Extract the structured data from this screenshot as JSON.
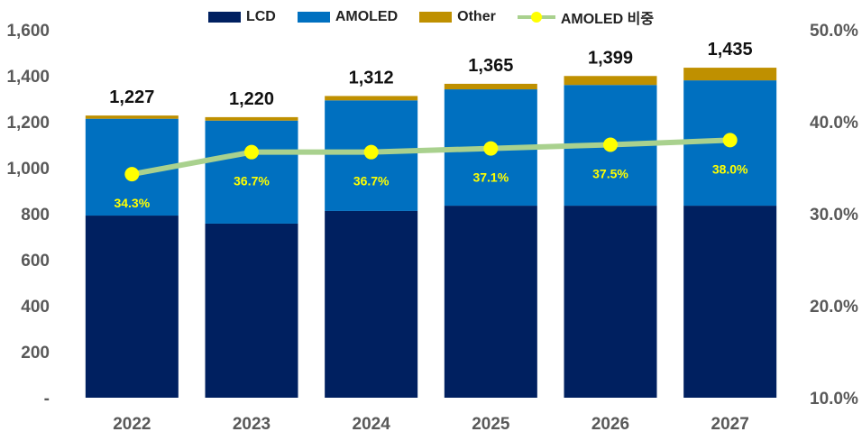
{
  "chart_data": {
    "type": "bar",
    "stacked": true,
    "categories": [
      "2022",
      "2023",
      "2024",
      "2025",
      "2026",
      "2027"
    ],
    "series": [
      {
        "name": "LCD",
        "values": [
          792,
          757,
          812,
          835,
          835,
          835
        ],
        "color": "#002060"
      },
      {
        "name": "AMOLED",
        "values": [
          421,
          448,
          481,
          506,
          525,
          545
        ],
        "color": "#0070C0"
      },
      {
        "name": "Other",
        "values": [
          14,
          15,
          19,
          24,
          39,
          55
        ],
        "color": "#BF9000"
      }
    ],
    "totals": [
      "1,227",
      "1,220",
      "1,312",
      "1,365",
      "1,399",
      "1,435"
    ],
    "line_series": {
      "name": "AMOLED 비중",
      "values": [
        34.3,
        36.7,
        36.7,
        37.1,
        37.5,
        38.0
      ],
      "labels": [
        "34.3%",
        "36.7%",
        "36.7%",
        "37.1%",
        "37.5%",
        "38.0%"
      ],
      "line_color": "#A9D18E",
      "marker_color": "#FFFF00",
      "axis": "right"
    },
    "y_left": {
      "ylim": [
        0,
        1600
      ],
      "ticks": [
        0,
        200,
        400,
        600,
        800,
        1000,
        1200,
        1400,
        1600
      ],
      "tick_labels": [
        "-",
        "200",
        "400",
        "600",
        "800",
        "1,000",
        "1,200",
        "1,400",
        "1,600"
      ]
    },
    "y_right": {
      "ylim": [
        10,
        50
      ],
      "ticks": [
        10,
        20,
        30,
        40,
        50
      ],
      "tick_labels": [
        "10.0%",
        "20.0%",
        "30.0%",
        "40.0%",
        "50.0%"
      ]
    },
    "legend_position": "top",
    "grid": false,
    "title": "",
    "xlabel": "",
    "ylabel": ""
  }
}
